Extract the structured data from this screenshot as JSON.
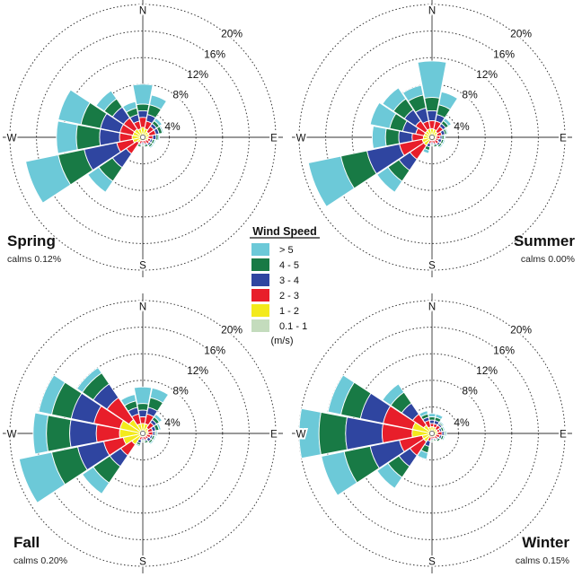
{
  "chart_data": {
    "type": "windrose",
    "radial_unit": "%",
    "rings": [
      4,
      8,
      12,
      16,
      20
    ],
    "ring_labels": [
      "4%",
      "8%",
      "12%",
      "16%",
      "20%"
    ],
    "directions": [
      "N",
      "NNE",
      "NE",
      "ENE",
      "E",
      "ESE",
      "SE",
      "SSE",
      "S",
      "SSW",
      "SW",
      "WSW",
      "W",
      "WNW",
      "NW",
      "NNW"
    ],
    "cardinal_labels": [
      "N",
      "E",
      "S",
      "W"
    ],
    "legend": {
      "title": "Wind Speed",
      "unit": "(m/s)",
      "bins": [
        {
          "label": "> 5",
          "color": "#6cc9d8"
        },
        {
          "label": "4 - 5",
          "color": "#187a45"
        },
        {
          "label": "3 - 4",
          "color": "#2f45a0"
        },
        {
          "label": "2 - 3",
          "color": "#e81e2a"
        },
        {
          "label": "1 - 2",
          "color": "#f3ea1c"
        },
        {
          "label": "0.1 - 1",
          "color": "#c4dcbd"
        }
      ]
    },
    "panels": [
      {
        "season": "Spring",
        "calms": "calms 0.12%",
        "cumulative": [
          [
            0.3,
            1.5,
            3.0,
            4.0,
            5.0,
            8.0
          ],
          [
            0.3,
            1.3,
            2.5,
            3.5,
            5.0,
            6.5
          ],
          [
            0.3,
            1.0,
            2.0,
            2.5,
            3.0,
            3.5
          ],
          [
            0.3,
            1.0,
            2.0,
            2.5,
            3.0,
            3.2
          ],
          [
            0.3,
            0.8,
            1.5,
            2.0,
            2.3,
            2.5
          ],
          [
            0.2,
            0.8,
            1.2,
            1.5,
            1.8,
            2.0
          ],
          [
            0.2,
            0.6,
            1.2,
            1.5,
            1.8,
            2.0
          ],
          [
            0.2,
            0.5,
            1.0,
            1.2,
            1.5,
            1.6
          ],
          [
            0.2,
            0.5,
            0.8,
            1.0,
            1.2,
            1.3
          ],
          [
            0.2,
            0.5,
            1.0,
            1.2,
            1.5,
            1.6
          ],
          [
            0.3,
            1.0,
            3.0,
            5.5,
            8.0,
            10.0
          ],
          [
            0.3,
            1.5,
            4.0,
            9.0,
            13.0,
            18.0
          ],
          [
            0.3,
            1.6,
            3.5,
            6.5,
            10.0,
            13.0
          ],
          [
            0.3,
            1.5,
            3.5,
            6.5,
            9.5,
            13.0
          ],
          [
            0.3,
            1.5,
            3.5,
            5.5,
            7.0,
            8.5
          ],
          [
            0.3,
            1.3,
            2.5,
            3.5,
            4.5,
            5.5
          ]
        ]
      },
      {
        "season": "Summer",
        "calms": "calms 0.00%",
        "cumulative": [
          [
            0.3,
            1.3,
            2.5,
            4.0,
            6.0,
            11.5
          ],
          [
            0.3,
            1.2,
            2.5,
            3.5,
            5.0,
            7.0
          ],
          [
            0.3,
            1.0,
            2.0,
            2.5,
            3.0,
            3.5
          ],
          [
            0.3,
            0.8,
            1.5,
            2.0,
            2.3,
            2.5
          ],
          [
            0.3,
            0.6,
            1.2,
            1.5,
            1.8,
            2.0
          ],
          [
            0.2,
            0.6,
            1.0,
            1.5,
            1.8,
            2.0
          ],
          [
            0.2,
            0.6,
            1.2,
            1.5,
            1.8,
            2.0
          ],
          [
            0.2,
            0.5,
            1.0,
            1.2,
            1.5,
            1.6
          ],
          [
            0.2,
            0.4,
            0.8,
            1.0,
            1.2,
            1.3
          ],
          [
            0.2,
            0.5,
            1.0,
            1.5,
            2.0,
            2.5
          ],
          [
            0.3,
            1.5,
            4.0,
            6.0,
            8.0,
            10.0
          ],
          [
            0.3,
            1.5,
            5.0,
            10.0,
            14.0,
            19.0
          ],
          [
            0.3,
            1.3,
            3.0,
            5.0,
            7.0,
            9.0
          ],
          [
            0.3,
            1.2,
            2.5,
            4.5,
            6.5,
            9.5
          ],
          [
            0.3,
            1.2,
            3.0,
            5.0,
            7.0,
            9.0
          ],
          [
            0.3,
            1.3,
            2.5,
            4.5,
            6.5,
            8.0
          ]
        ]
      },
      {
        "season": "Fall",
        "calms": "calms 0.20%",
        "cumulative": [
          [
            0.4,
            1.5,
            2.5,
            3.5,
            4.5,
            7.0
          ],
          [
            0.4,
            1.5,
            3.0,
            4.0,
            5.5,
            7.0
          ],
          [
            0.3,
            1.0,
            2.0,
            2.5,
            3.0,
            3.5
          ],
          [
            0.3,
            0.8,
            1.5,
            2.0,
            2.5,
            2.8
          ],
          [
            0.3,
            0.8,
            1.5,
            1.8,
            2.0,
            2.2
          ],
          [
            0.2,
            0.6,
            1.2,
            1.5,
            1.8,
            2.0
          ],
          [
            0.2,
            0.6,
            1.0,
            1.5,
            1.8,
            2.0
          ],
          [
            0.2,
            0.5,
            1.0,
            1.2,
            1.5,
            1.6
          ],
          [
            0.2,
            0.5,
            0.8,
            1.0,
            1.2,
            1.3
          ],
          [
            0.2,
            0.5,
            1.0,
            1.5,
            1.8,
            2.0
          ],
          [
            0.4,
            2.0,
            4.0,
            6.0,
            9.0,
            11.0
          ],
          [
            0.4,
            3.0,
            6.0,
            10.0,
            14.0,
            19.0
          ],
          [
            0.4,
            3.5,
            7.0,
            11.0,
            14.5,
            16.5
          ],
          [
            0.4,
            3.5,
            7.5,
            11.0,
            14.0,
            16.0
          ],
          [
            0.4,
            2.5,
            6.5,
            9.0,
            11.0,
            12.0
          ],
          [
            0.4,
            1.5,
            3.0,
            4.0,
            5.0,
            6.0
          ]
        ]
      },
      {
        "season": "Winter",
        "calms": "calms 0.15%",
        "cumulative": [
          [
            0.3,
            1.0,
            1.5,
            2.0,
            2.5,
            3.0
          ],
          [
            0.3,
            1.0,
            1.5,
            2.0,
            2.5,
            3.0
          ],
          [
            0.3,
            0.8,
            1.5,
            1.8,
            2.0,
            2.2
          ],
          [
            0.3,
            0.8,
            1.2,
            1.5,
            1.8,
            2.0
          ],
          [
            0.3,
            0.8,
            1.5,
            1.8,
            2.0,
            2.2
          ],
          [
            0.2,
            0.6,
            1.2,
            1.5,
            1.8,
            2.0
          ],
          [
            0.2,
            0.6,
            1.0,
            1.2,
            1.5,
            1.6
          ],
          [
            0.2,
            0.5,
            0.8,
            1.0,
            1.2,
            1.3
          ],
          [
            0.2,
            0.4,
            0.8,
            1.0,
            1.2,
            1.3
          ],
          [
            0.2,
            0.6,
            1.2,
            2.0,
            3.0,
            4.0
          ],
          [
            0.3,
            1.5,
            4.0,
            6.0,
            8.0,
            10.0
          ],
          [
            0.3,
            1.5,
            5.0,
            9.5,
            13.5,
            17.0
          ],
          [
            0.3,
            3.0,
            7.5,
            13.0,
            17.0,
            20.0
          ],
          [
            0.3,
            3.0,
            7.5,
            11.0,
            14.0,
            16.0
          ],
          [
            0.3,
            1.5,
            3.5,
            5.5,
            7.5,
            9.0
          ],
          [
            0.3,
            1.0,
            2.0,
            2.5,
            3.0,
            3.5
          ]
        ]
      }
    ]
  }
}
